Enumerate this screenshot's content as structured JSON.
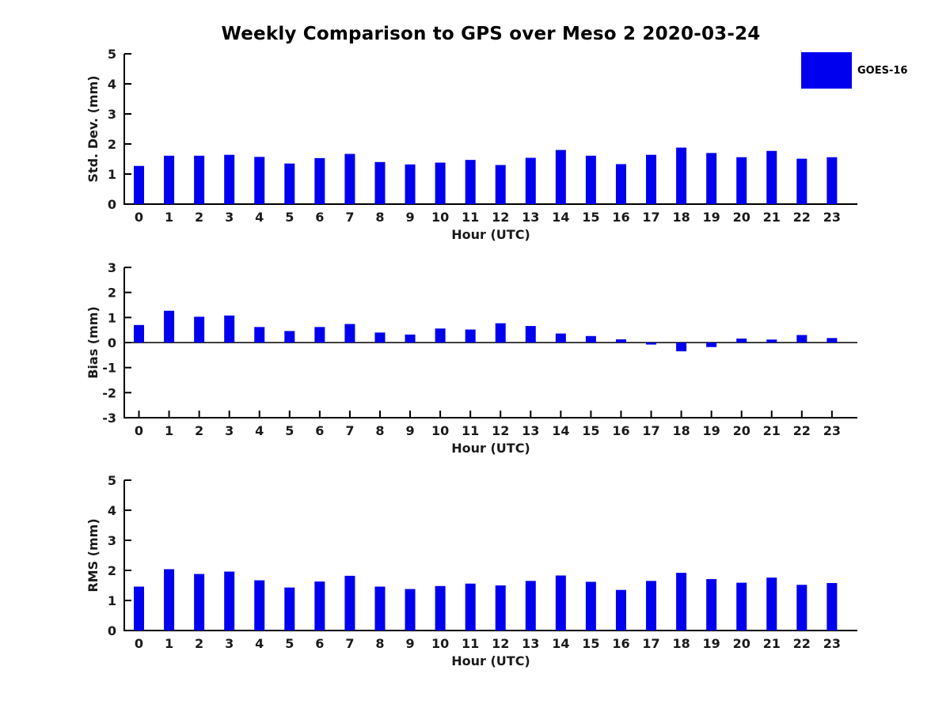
{
  "title": "Weekly Comparison to GPS over Meso 2 2020-03-24",
  "legend": {
    "label": "GOES-16",
    "position": "upper-right-outside"
  },
  "colors": {
    "bar": "#0000ee",
    "axis": "#000000",
    "text": "#1a1a1a",
    "background": "#ffffff"
  },
  "chart_data": [
    {
      "type": "bar",
      "title": "Weekly Comparison to GPS over Meso 2 2020-03-24",
      "ylabel": "Std. Dev. (mm)",
      "xlabel": "Hour (UTC)",
      "ylim": [
        0,
        5
      ],
      "yticks": [
        0,
        1,
        2,
        3,
        4,
        5
      ],
      "grid": false,
      "categories": [
        "0",
        "1",
        "2",
        "3",
        "4",
        "5",
        "6",
        "7",
        "8",
        "9",
        "10",
        "11",
        "12",
        "13",
        "14",
        "15",
        "16",
        "17",
        "18",
        "19",
        "20",
        "21",
        "22",
        "23"
      ],
      "series": [
        {
          "name": "GOES-16",
          "values": [
            1.27,
            1.61,
            1.61,
            1.64,
            1.57,
            1.35,
            1.53,
            1.67,
            1.4,
            1.32,
            1.38,
            1.47,
            1.3,
            1.54,
            1.8,
            1.61,
            1.33,
            1.64,
            1.88,
            1.7,
            1.56,
            1.77,
            1.51,
            1.56
          ]
        }
      ]
    },
    {
      "type": "bar",
      "title": "",
      "ylabel": "Bias (mm)",
      "xlabel": "Hour (UTC)",
      "ylim": [
        -3,
        3
      ],
      "yticks": [
        -3,
        -2,
        -1,
        0,
        1,
        2,
        3
      ],
      "grid": false,
      "categories": [
        "0",
        "1",
        "2",
        "3",
        "4",
        "5",
        "6",
        "7",
        "8",
        "9",
        "10",
        "11",
        "12",
        "13",
        "14",
        "15",
        "16",
        "17",
        "18",
        "19",
        "20",
        "21",
        "22",
        "23"
      ],
      "series": [
        {
          "name": "GOES-16",
          "values": [
            0.7,
            1.27,
            1.03,
            1.08,
            0.62,
            0.46,
            0.62,
            0.74,
            0.4,
            0.32,
            0.56,
            0.52,
            0.77,
            0.66,
            0.36,
            0.26,
            0.13,
            -0.08,
            -0.35,
            -0.18,
            0.16,
            0.12,
            0.3,
            0.18
          ]
        }
      ]
    },
    {
      "type": "bar",
      "title": "",
      "ylabel": "RMS (mm)",
      "xlabel": "Hour (UTC)",
      "ylim": [
        0,
        5
      ],
      "yticks": [
        0,
        1,
        2,
        3,
        4,
        5
      ],
      "grid": false,
      "categories": [
        "0",
        "1",
        "2",
        "3",
        "4",
        "5",
        "6",
        "7",
        "8",
        "9",
        "10",
        "11",
        "12",
        "13",
        "14",
        "15",
        "16",
        "17",
        "18",
        "19",
        "20",
        "21",
        "22",
        "23"
      ],
      "series": [
        {
          "name": "GOES-16",
          "values": [
            1.46,
            2.04,
            1.88,
            1.96,
            1.67,
            1.43,
            1.63,
            1.82,
            1.46,
            1.38,
            1.48,
            1.56,
            1.5,
            1.65,
            1.83,
            1.62,
            1.35,
            1.65,
            1.92,
            1.71,
            1.59,
            1.76,
            1.52,
            1.58
          ]
        }
      ]
    }
  ]
}
